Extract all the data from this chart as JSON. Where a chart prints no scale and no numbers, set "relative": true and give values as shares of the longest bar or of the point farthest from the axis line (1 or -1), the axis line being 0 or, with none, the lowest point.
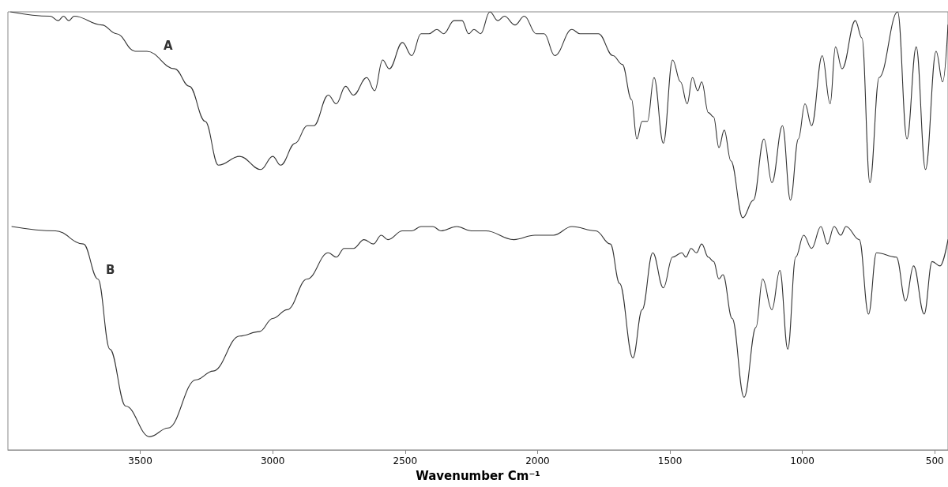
{
  "chart_data": {
    "type": "line",
    "xlabel": "Wavenumber Cm⁻¹",
    "relative": true,
    "marker": "none",
    "grid": false,
    "legend": false,
    "xlim": [
      4000,
      450
    ],
    "xticks": [
      3500,
      3000,
      2500,
      2000,
      1500,
      1000,
      500
    ],
    "series": [
      {
        "name": "A",
        "color": "#333333",
        "x": [
          3990,
          3840,
          3810,
          3790,
          3770,
          3750,
          3645,
          3590,
          3520,
          3475,
          3370,
          3315,
          3255,
          3205,
          3125,
          3045,
          3000,
          2970,
          2915,
          2870,
          2845,
          2790,
          2760,
          2725,
          2695,
          2645,
          2615,
          2585,
          2560,
          2510,
          2475,
          2440,
          2410,
          2380,
          2355,
          2315,
          2285,
          2260,
          2240,
          2215,
          2180,
          2150,
          2125,
          2085,
          2050,
          2005,
          1975,
          1935,
          1870,
          1840,
          1770,
          1715,
          1680,
          1645,
          1625,
          1605,
          1585,
          1560,
          1525,
          1490,
          1460,
          1435,
          1415,
          1395,
          1380,
          1355,
          1335,
          1315,
          1295,
          1270,
          1225,
          1185,
          1145,
          1115,
          1075,
          1045,
          1015,
          990,
          965,
          925,
          895,
          875,
          850,
          800,
          775,
          745,
          710,
          640,
          605,
          570,
          535,
          495,
          470,
          450
        ],
        "values": [
          1.0,
          0.99,
          0.98,
          0.99,
          0.98,
          0.99,
          0.97,
          0.95,
          0.91,
          0.91,
          0.87,
          0.83,
          0.75,
          0.65,
          0.67,
          0.64,
          0.67,
          0.65,
          0.7,
          0.74,
          0.74,
          0.81,
          0.79,
          0.83,
          0.81,
          0.85,
          0.82,
          0.89,
          0.87,
          0.93,
          0.9,
          0.95,
          0.95,
          0.96,
          0.95,
          0.98,
          0.98,
          0.95,
          0.96,
          0.95,
          1.0,
          0.98,
          0.99,
          0.97,
          0.99,
          0.95,
          0.95,
          0.9,
          0.96,
          0.95,
          0.95,
          0.9,
          0.88,
          0.8,
          0.71,
          0.75,
          0.75,
          0.85,
          0.7,
          0.89,
          0.84,
          0.79,
          0.85,
          0.82,
          0.84,
          0.77,
          0.76,
          0.69,
          0.73,
          0.66,
          0.53,
          0.57,
          0.71,
          0.61,
          0.74,
          0.57,
          0.71,
          0.79,
          0.74,
          0.9,
          0.79,
          0.92,
          0.87,
          0.98,
          0.94,
          0.61,
          0.85,
          1.0,
          0.71,
          0.92,
          0.64,
          0.91,
          0.84,
          0.97
        ]
      },
      {
        "name": "B",
        "color": "#333333",
        "x": [
          3985,
          3820,
          3715,
          3660,
          3615,
          3555,
          3465,
          3395,
          3290,
          3225,
          3125,
          3050,
          3000,
          2945,
          2870,
          2790,
          2760,
          2730,
          2695,
          2655,
          2620,
          2590,
          2565,
          2510,
          2475,
          2440,
          2395,
          2365,
          2305,
          2250,
          2195,
          2090,
          2010,
          1940,
          1870,
          1780,
          1725,
          1690,
          1640,
          1605,
          1565,
          1525,
          1490,
          1455,
          1440,
          1420,
          1400,
          1380,
          1355,
          1335,
          1315,
          1300,
          1265,
          1220,
          1175,
          1150,
          1115,
          1085,
          1055,
          1025,
          995,
          965,
          930,
          905,
          880,
          855,
          835,
          785,
          750,
          720,
          645,
          610,
          580,
          540,
          510,
          480,
          450
        ],
        "values": [
          0.51,
          0.5,
          0.47,
          0.39,
          0.23,
          0.1,
          0.03,
          0.05,
          0.16,
          0.18,
          0.26,
          0.27,
          0.3,
          0.32,
          0.39,
          0.45,
          0.44,
          0.46,
          0.46,
          0.48,
          0.47,
          0.49,
          0.48,
          0.5,
          0.5,
          0.51,
          0.51,
          0.5,
          0.51,
          0.5,
          0.5,
          0.48,
          0.49,
          0.49,
          0.51,
          0.5,
          0.47,
          0.38,
          0.21,
          0.32,
          0.45,
          0.37,
          0.44,
          0.45,
          0.44,
          0.46,
          0.45,
          0.47,
          0.44,
          0.43,
          0.39,
          0.4,
          0.3,
          0.12,
          0.28,
          0.39,
          0.32,
          0.41,
          0.23,
          0.44,
          0.49,
          0.46,
          0.51,
          0.47,
          0.51,
          0.49,
          0.51,
          0.48,
          0.31,
          0.45,
          0.44,
          0.34,
          0.42,
          0.31,
          0.43,
          0.42,
          0.48
        ]
      }
    ]
  }
}
